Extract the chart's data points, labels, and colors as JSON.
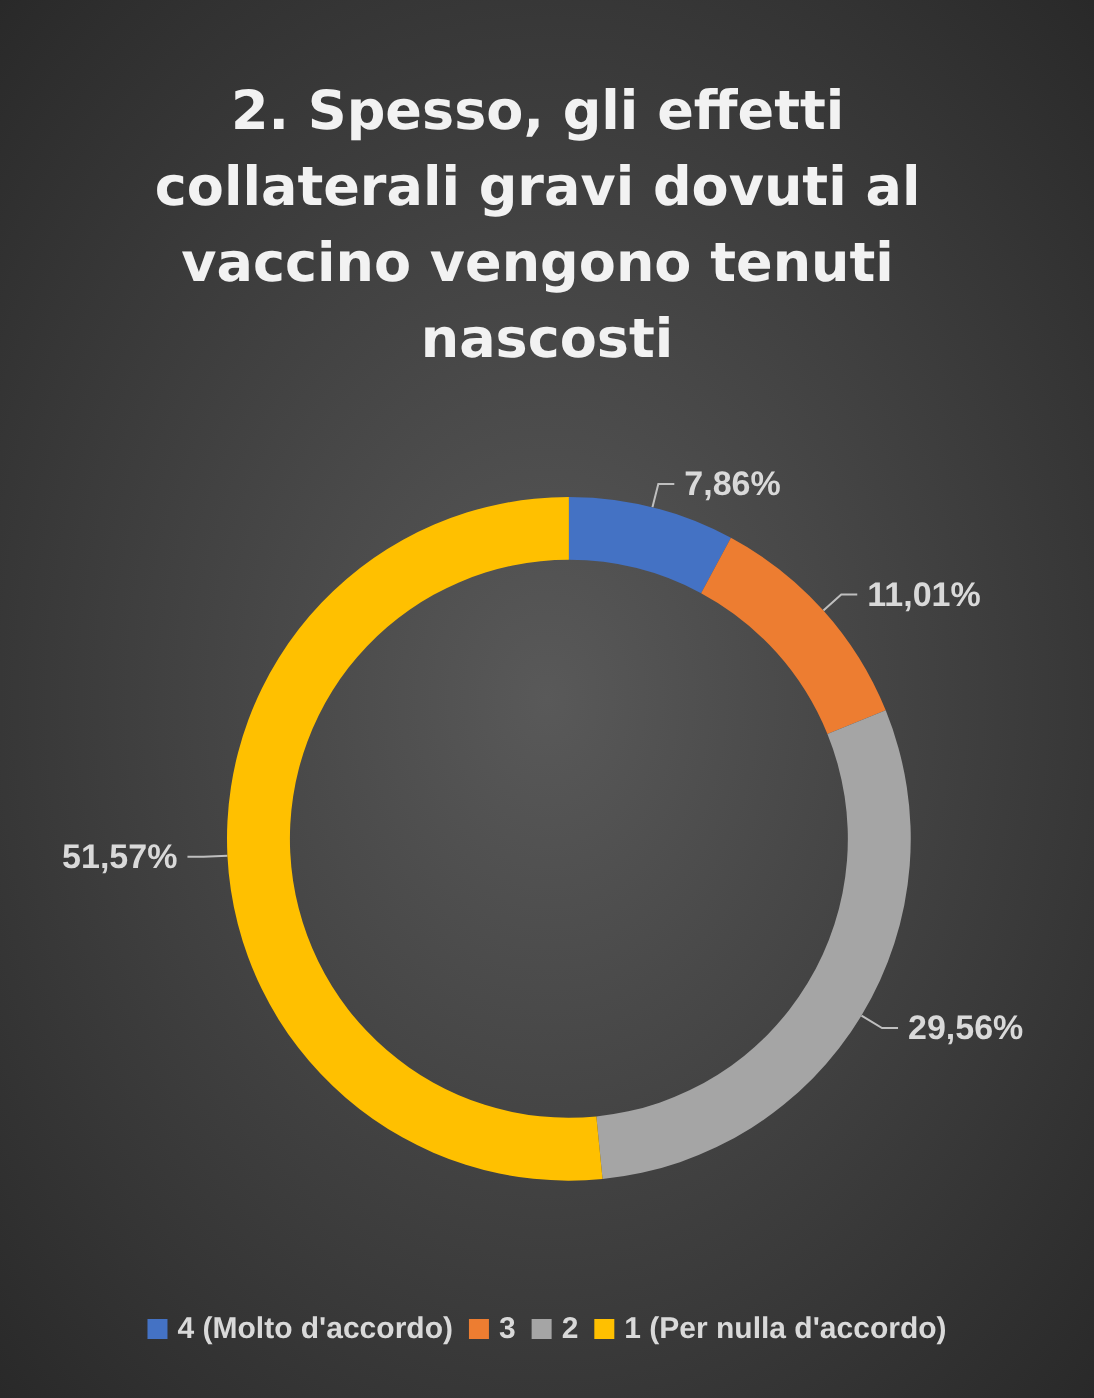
{
  "chart_data": {
    "type": "donut",
    "title": "2. Spesso, gli effetti collaterali gravi dovuti al vaccino vengono tenuti nascosti",
    "categories": [
      "4 (Molto d'accordo)",
      "3",
      "2",
      "1 (Per nulla d'accordo)"
    ],
    "values": [
      7.86,
      11.01,
      29.56,
      51.57
    ],
    "value_labels": [
      "7,86%",
      "11,01%",
      "29,56%",
      "51,57%"
    ],
    "colors": [
      "#4472c4",
      "#ed7d31",
      "#a5a5a5",
      "#ffc000"
    ],
    "legend": "bottom"
  }
}
